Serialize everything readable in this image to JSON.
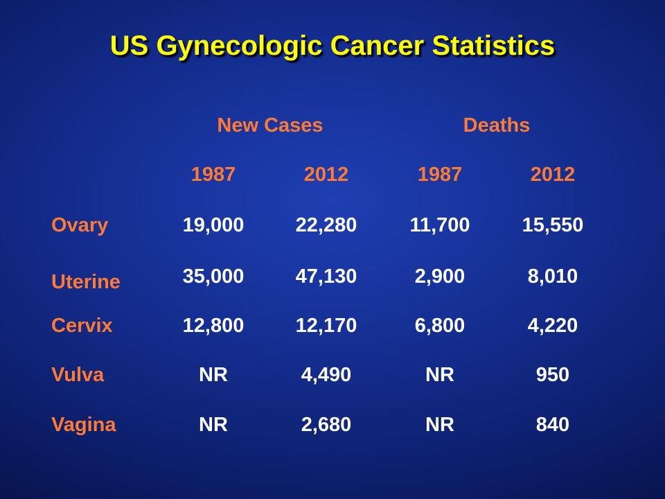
{
  "slide": {
    "title": "US Gynecologic Cancer Statistics"
  },
  "table": {
    "groups": [
      "New Cases",
      "Deaths"
    ],
    "years": [
      "1987",
      "2012",
      "1987",
      "2012"
    ],
    "rows": [
      {
        "label": "Ovary",
        "values": [
          "19,000",
          "22,280",
          "11,700",
          "15,550"
        ]
      },
      {
        "label": "Uterine",
        "values": [
          "35,000",
          "47,130",
          "2,900",
          "8,010"
        ]
      },
      {
        "label": "Cervix",
        "values": [
          "12,800",
          "12,170",
          "6,800",
          "4,220"
        ]
      },
      {
        "label": "Vulva",
        "values": [
          "NR",
          "4,490",
          "NR",
          "950"
        ]
      },
      {
        "label": "Vagina",
        "values": [
          "NR",
          "2,680",
          "NR",
          "840"
        ]
      }
    ]
  },
  "colors": {
    "title": "#ffff00",
    "header": "#ff7a33",
    "value": "#ffffff",
    "background": "#142d8f"
  }
}
